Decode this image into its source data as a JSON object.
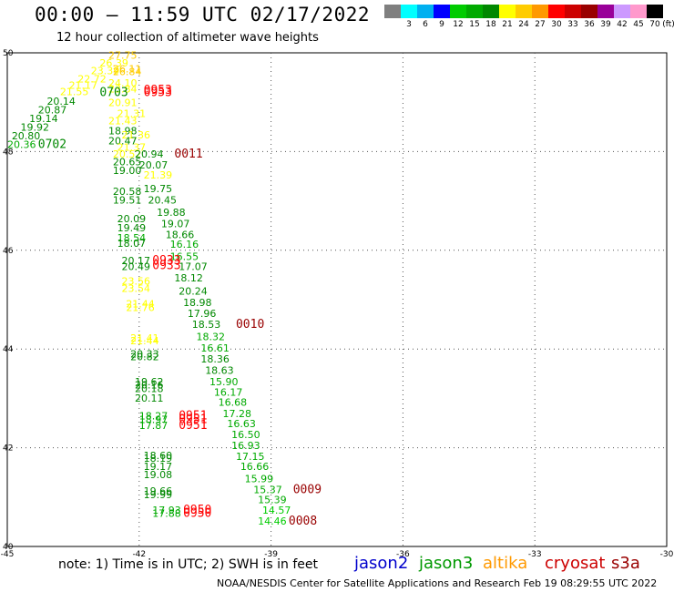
{
  "header": {
    "title": "00:00 – 11:59 UTC 02/17/2022",
    "subtitle": "12 hour collection of altimeter wave heights"
  },
  "color_scale": {
    "unit": "(ft)",
    "bins": [
      {
        "label": "",
        "color": "#7f7f7f"
      },
      {
        "label": "3",
        "color": "#00ffff"
      },
      {
        "label": "6",
        "color": "#00b0f0"
      },
      {
        "label": "9",
        "color": "#0000ff"
      },
      {
        "label": "12",
        "color": "#00cc00"
      },
      {
        "label": "15",
        "color": "#00aa00"
      },
      {
        "label": "18",
        "color": "#008800"
      },
      {
        "label": "21",
        "color": "#ffff00"
      },
      {
        "label": "24",
        "color": "#ffcc00"
      },
      {
        "label": "27",
        "color": "#ff9900"
      },
      {
        "label": "30",
        "color": "#ff0000"
      },
      {
        "label": "33",
        "color": "#cc0000"
      },
      {
        "label": "36",
        "color": "#990000"
      },
      {
        "label": "39",
        "color": "#990099"
      },
      {
        "label": "42",
        "color": "#cc99ff"
      },
      {
        "label": "45",
        "color": "#ff99cc"
      },
      {
        "label": "70",
        "color": "#000000"
      }
    ]
  },
  "missions": [
    {
      "name": "jason2",
      "color": "#0000cc"
    },
    {
      "name": "jason3",
      "color": "#009900"
    },
    {
      "name": "altika",
      "color": "#ff9900"
    },
    {
      "name": "cryosat",
      "color": "#cc0000"
    },
    {
      "name": "s3a",
      "color": "#990000"
    }
  ],
  "footer": {
    "note": "note: 1) Time is in UTC; 2) SWH is in feet",
    "credit": "NOAA/NESDIS Center for Satellite Applications and Research    Feb 19 08:29:55 UTC 2022"
  },
  "chart_data": {
    "type": "scatter",
    "title": "00:00 – 11:59 UTC 02/17/2022",
    "subtitle": "12 hour collection of altimeter wave heights",
    "xlabel": "",
    "ylabel": "",
    "xlim": [
      -45,
      -30
    ],
    "ylim": [
      40,
      50
    ],
    "x_ticks": [
      -45,
      -42,
      -39,
      -36,
      -33,
      -30
    ],
    "x_tick_labels": [
      "-45",
      "-42",
      "-39",
      "-36",
      "-33",
      "-30"
    ],
    "y_ticks": [
      40,
      42,
      44,
      46,
      48,
      50
    ],
    "y_tick_labels": [
      "40",
      "42",
      "44",
      "46",
      "48",
      "50"
    ],
    "grid": true,
    "values": [
      {
        "lon": -42.7,
        "lat": 49.88,
        "text": "27.75",
        "color": "#ffcc00"
      },
      {
        "lon": -42.9,
        "lat": 49.72,
        "text": "26.39",
        "color": "#ffff00"
      },
      {
        "lon": -42.6,
        "lat": 49.6,
        "text": "26.11",
        "color": "#ffcc00"
      },
      {
        "lon": -43.1,
        "lat": 49.57,
        "text": "23.39",
        "color": "#ffff00"
      },
      {
        "lon": -42.6,
        "lat": 49.55,
        "text": "26.84",
        "color": "#ffcc00"
      },
      {
        "lon": -43.4,
        "lat": 49.4,
        "text": "22.72",
        "color": "#ffff00"
      },
      {
        "lon": -42.7,
        "lat": 49.32,
        "text": "24.10",
        "color": "#ffff00"
      },
      {
        "lon": -43.6,
        "lat": 49.27,
        "text": "21.17",
        "color": "#ffff00"
      },
      {
        "lon": -42.7,
        "lat": 49.2,
        "text": "23.84",
        "color": "#ffff00"
      },
      {
        "lon": -43.8,
        "lat": 49.14,
        "text": "21.55",
        "color": "#ffff00"
      },
      {
        "lon": -42.9,
        "lat": 49.12,
        "text": "0703",
        "color": "#008800",
        "kind": "time"
      },
      {
        "lon": -41.9,
        "lat": 49.17,
        "text": "0953",
        "color": "#ff0000",
        "kind": "time"
      },
      {
        "lon": -41.9,
        "lat": 49.12,
        "text": "0953",
        "color": "#ff0000",
        "kind": "time"
      },
      {
        "lon": -44.1,
        "lat": 48.95,
        "text": "20.14",
        "color": "#008800"
      },
      {
        "lon": -42.7,
        "lat": 48.92,
        "text": "20.91",
        "color": "#ffff00"
      },
      {
        "lon": -44.3,
        "lat": 48.77,
        "text": "20.87",
        "color": "#008800"
      },
      {
        "lon": -42.5,
        "lat": 48.7,
        "text": "21.31",
        "color": "#ffff00"
      },
      {
        "lon": -44.5,
        "lat": 48.6,
        "text": "19.14",
        "color": "#008800"
      },
      {
        "lon": -42.7,
        "lat": 48.55,
        "text": "21.43",
        "color": "#ffff00"
      },
      {
        "lon": -44.7,
        "lat": 48.42,
        "text": "19.92",
        "color": "#008800"
      },
      {
        "lon": -42.7,
        "lat": 48.35,
        "text": "18.98",
        "color": "#008800"
      },
      {
        "lon": -42.4,
        "lat": 48.27,
        "text": "21.36",
        "color": "#ffff00"
      },
      {
        "lon": -44.9,
        "lat": 48.25,
        "text": "20.80",
        "color": "#008800"
      },
      {
        "lon": -42.7,
        "lat": 48.15,
        "text": "20.47",
        "color": "#008800"
      },
      {
        "lon": -45.0,
        "lat": 48.07,
        "text": "20.36",
        "color": "#00aa00"
      },
      {
        "lon": -44.3,
        "lat": 48.07,
        "text": "0702",
        "color": "#008800",
        "kind": "time"
      },
      {
        "lon": -42.5,
        "lat": 48.02,
        "text": "21.37",
        "color": "#ffff00"
      },
      {
        "lon": -42.6,
        "lat": 47.88,
        "text": "20.52",
        "color": "#ffff00"
      },
      {
        "lon": -42.1,
        "lat": 47.88,
        "text": "20.94",
        "color": "#008800"
      },
      {
        "lon": -41.2,
        "lat": 47.88,
        "text": "0011",
        "color": "#990000",
        "kind": "time"
      },
      {
        "lon": -42.6,
        "lat": 47.72,
        "text": "20.65",
        "color": "#008800"
      },
      {
        "lon": -42.0,
        "lat": 47.66,
        "text": "20.07",
        "color": "#008800"
      },
      {
        "lon": -42.6,
        "lat": 47.55,
        "text": "19.00",
        "color": "#008800"
      },
      {
        "lon": -41.9,
        "lat": 47.45,
        "text": "21.39",
        "color": "#ffff00"
      },
      {
        "lon": -41.9,
        "lat": 47.18,
        "text": "19.75",
        "color": "#008800"
      },
      {
        "lon": -42.6,
        "lat": 47.12,
        "text": "20.58",
        "color": "#008800"
      },
      {
        "lon": -42.6,
        "lat": 46.95,
        "text": "19.51",
        "color": "#008800"
      },
      {
        "lon": -41.8,
        "lat": 46.95,
        "text": "20.45",
        "color": "#008800"
      },
      {
        "lon": -41.6,
        "lat": 46.7,
        "text": "19.88",
        "color": "#008800"
      },
      {
        "lon": -42.5,
        "lat": 46.57,
        "text": "20.09",
        "color": "#008800"
      },
      {
        "lon": -41.5,
        "lat": 46.47,
        "text": "19.07",
        "color": "#008800"
      },
      {
        "lon": -42.5,
        "lat": 46.38,
        "text": "19.49",
        "color": "#008800"
      },
      {
        "lon": -41.4,
        "lat": 46.25,
        "text": "18.66",
        "color": "#008800"
      },
      {
        "lon": -42.5,
        "lat": 46.18,
        "text": "18.54",
        "color": "#00aa00"
      },
      {
        "lon": -42.5,
        "lat": 46.07,
        "text": "18.07",
        "color": "#008800"
      },
      {
        "lon": -41.3,
        "lat": 46.05,
        "text": "16.16",
        "color": "#00aa00"
      },
      {
        "lon": -41.3,
        "lat": 45.8,
        "text": "16.55",
        "color": "#00aa00"
      },
      {
        "lon": -42.4,
        "lat": 45.72,
        "text": "20.17",
        "color": "#008800"
      },
      {
        "lon": -41.7,
        "lat": 45.72,
        "text": "0933",
        "color": "#ff0000",
        "kind": "time"
      },
      {
        "lon": -41.7,
        "lat": 45.62,
        "text": "0933",
        "color": "#ff0000",
        "kind": "time"
      },
      {
        "lon": -42.4,
        "lat": 45.6,
        "text": "20.49",
        "color": "#008800"
      },
      {
        "lon": -41.1,
        "lat": 45.6,
        "text": "17.07",
        "color": "#008800"
      },
      {
        "lon": -41.2,
        "lat": 45.37,
        "text": "18.12",
        "color": "#008800"
      },
      {
        "lon": -42.4,
        "lat": 45.3,
        "text": "23.56",
        "color": "#ffff00"
      },
      {
        "lon": -42.4,
        "lat": 45.16,
        "text": "23.54",
        "color": "#ffff00"
      },
      {
        "lon": -41.1,
        "lat": 45.1,
        "text": "20.24",
        "color": "#008800"
      },
      {
        "lon": -41.0,
        "lat": 44.87,
        "text": "18.98",
        "color": "#008800"
      },
      {
        "lon": -42.3,
        "lat": 44.84,
        "text": "21.44",
        "color": "#ffff00"
      },
      {
        "lon": -42.3,
        "lat": 44.77,
        "text": "21.76",
        "color": "#ffff00"
      },
      {
        "lon": -40.9,
        "lat": 44.65,
        "text": "17.96",
        "color": "#008800"
      },
      {
        "lon": -40.8,
        "lat": 44.43,
        "text": "18.53",
        "color": "#008800"
      },
      {
        "lon": -39.8,
        "lat": 44.43,
        "text": "0010",
        "color": "#990000",
        "kind": "time"
      },
      {
        "lon": -40.7,
        "lat": 44.18,
        "text": "18.32",
        "color": "#00aa00"
      },
      {
        "lon": -42.2,
        "lat": 44.15,
        "text": "21.41",
        "color": "#ffff00"
      },
      {
        "lon": -42.2,
        "lat": 44.1,
        "text": "21.44",
        "color": "#ffff00"
      },
      {
        "lon": -40.6,
        "lat": 43.95,
        "text": "16.61",
        "color": "#00aa00"
      },
      {
        "lon": -42.2,
        "lat": 43.83,
        "text": "20.33",
        "color": "#008800"
      },
      {
        "lon": -42.2,
        "lat": 43.77,
        "text": "20.82",
        "color": "#008800"
      },
      {
        "lon": -40.6,
        "lat": 43.73,
        "text": "18.36",
        "color": "#008800"
      },
      {
        "lon": -40.5,
        "lat": 43.5,
        "text": "18.63",
        "color": "#008800"
      },
      {
        "lon": -42.1,
        "lat": 43.27,
        "text": "19.62",
        "color": "#008800"
      },
      {
        "lon": -40.4,
        "lat": 43.27,
        "text": "15.90",
        "color": "#00aa00"
      },
      {
        "lon": -42.1,
        "lat": 43.2,
        "text": "20.16",
        "color": "#008800"
      },
      {
        "lon": -42.1,
        "lat": 43.13,
        "text": "20.18",
        "color": "#008800"
      },
      {
        "lon": -40.3,
        "lat": 43.05,
        "text": "16.17",
        "color": "#00aa00"
      },
      {
        "lon": -42.1,
        "lat": 42.93,
        "text": "20.11",
        "color": "#008800"
      },
      {
        "lon": -40.2,
        "lat": 42.85,
        "text": "16.68",
        "color": "#00aa00"
      },
      {
        "lon": -40.1,
        "lat": 42.62,
        "text": "17.28",
        "color": "#00aa00"
      },
      {
        "lon": -42.0,
        "lat": 42.57,
        "text": "18.27",
        "color": "#00aa00"
      },
      {
        "lon": -41.1,
        "lat": 42.57,
        "text": "0951",
        "color": "#ff0000",
        "kind": "time"
      },
      {
        "lon": -42.0,
        "lat": 42.5,
        "text": "18.97",
        "color": "#00aa00"
      },
      {
        "lon": -41.1,
        "lat": 42.5,
        "text": "0951",
        "color": "#ff0000",
        "kind": "time"
      },
      {
        "lon": -42.0,
        "lat": 42.38,
        "text": "17.87",
        "color": "#00aa00"
      },
      {
        "lon": -41.1,
        "lat": 42.38,
        "text": "0951",
        "color": "#ff0000",
        "kind": "time"
      },
      {
        "lon": -40.0,
        "lat": 42.42,
        "text": "16.63",
        "color": "#00aa00"
      },
      {
        "lon": -39.9,
        "lat": 42.2,
        "text": "16.50",
        "color": "#00aa00"
      },
      {
        "lon": -39.9,
        "lat": 41.97,
        "text": "16.93",
        "color": "#00aa00"
      },
      {
        "lon": -41.9,
        "lat": 41.77,
        "text": "18.60",
        "color": "#008800"
      },
      {
        "lon": -41.9,
        "lat": 41.72,
        "text": "18.19",
        "color": "#008800"
      },
      {
        "lon": -39.8,
        "lat": 41.75,
        "text": "17.15",
        "color": "#00aa00"
      },
      {
        "lon": -41.9,
        "lat": 41.55,
        "text": "19.17",
        "color": "#008800"
      },
      {
        "lon": -39.7,
        "lat": 41.55,
        "text": "16.66",
        "color": "#00aa00"
      },
      {
        "lon": -41.9,
        "lat": 41.38,
        "text": "19.08",
        "color": "#008800"
      },
      {
        "lon": -39.6,
        "lat": 41.3,
        "text": "15.99",
        "color": "#00aa00"
      },
      {
        "lon": -39.4,
        "lat": 41.08,
        "text": "15.37",
        "color": "#00aa00"
      },
      {
        "lon": -38.5,
        "lat": 41.08,
        "text": "0009",
        "color": "#990000",
        "kind": "time"
      },
      {
        "lon": -41.9,
        "lat": 41.05,
        "text": "19.66",
        "color": "#008800"
      },
      {
        "lon": -41.9,
        "lat": 40.98,
        "text": "19.99",
        "color": "#008800"
      },
      {
        "lon": -39.3,
        "lat": 40.88,
        "text": "15.39",
        "color": "#00aa00"
      },
      {
        "lon": -41.7,
        "lat": 40.66,
        "text": "17.93",
        "color": "#00aa00"
      },
      {
        "lon": -41.0,
        "lat": 40.66,
        "text": "0950",
        "color": "#ff0000",
        "kind": "time"
      },
      {
        "lon": -41.7,
        "lat": 40.6,
        "text": "17.88",
        "color": "#00aa00"
      },
      {
        "lon": -41.0,
        "lat": 40.6,
        "text": "0950",
        "color": "#ff0000",
        "kind": "time"
      },
      {
        "lon": -39.2,
        "lat": 40.66,
        "text": "14.57",
        "color": "#00cc00"
      },
      {
        "lon": -39.3,
        "lat": 40.44,
        "text": "14.46",
        "color": "#00cc00"
      },
      {
        "lon": -38.6,
        "lat": 40.44,
        "text": "0008",
        "color": "#990000",
        "kind": "time"
      }
    ]
  }
}
